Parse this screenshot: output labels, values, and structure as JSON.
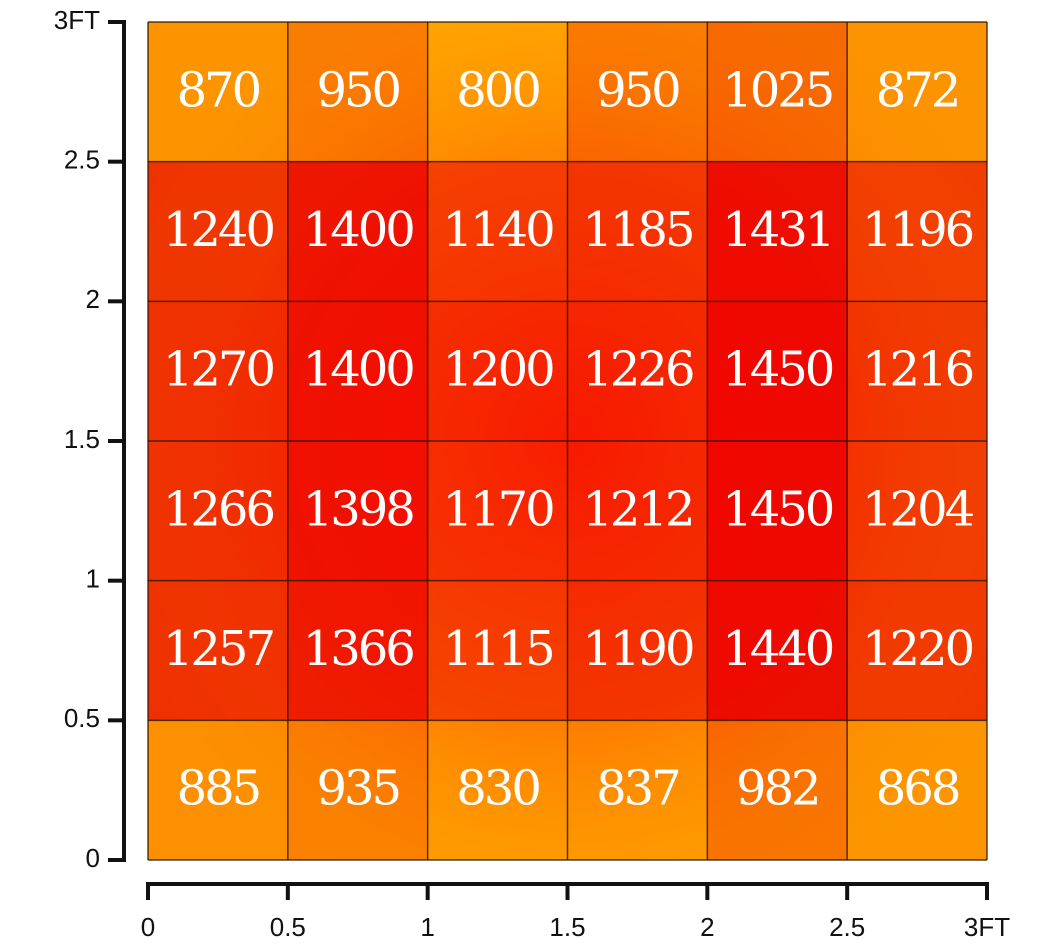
{
  "chart_data": {
    "type": "heatmap",
    "x": [
      0.25,
      0.75,
      1.25,
      1.75,
      2.25,
      2.75
    ],
    "y": [
      2.75,
      2.25,
      1.75,
      1.25,
      0.75,
      0.25
    ],
    "values": [
      [
        870,
        950,
        800,
        950,
        1025,
        872
      ],
      [
        1240,
        1400,
        1140,
        1185,
        1431,
        1196
      ],
      [
        1270,
        1400,
        1200,
        1226,
        1450,
        1216
      ],
      [
        1266,
        1398,
        1170,
        1212,
        1450,
        1204
      ],
      [
        1257,
        1366,
        1115,
        1190,
        1440,
        1220
      ],
      [
        885,
        935,
        830,
        837,
        982,
        868
      ]
    ],
    "xlim": [
      0,
      3
    ],
    "ylim": [
      0,
      3
    ],
    "x_ticks": [
      "0",
      "0.5",
      "1",
      "1.5",
      "2",
      "2.5",
      "3FT"
    ],
    "y_ticks": [
      "0",
      "0.5",
      "1",
      "1.5",
      "2",
      "2.5",
      "3FT"
    ],
    "colors": {
      "low": "#FFA800",
      "mid": "#F24B00",
      "high": "#E80000",
      "gridline": "#2a1400",
      "axis": "#111111",
      "label": "#ffffff"
    }
  }
}
